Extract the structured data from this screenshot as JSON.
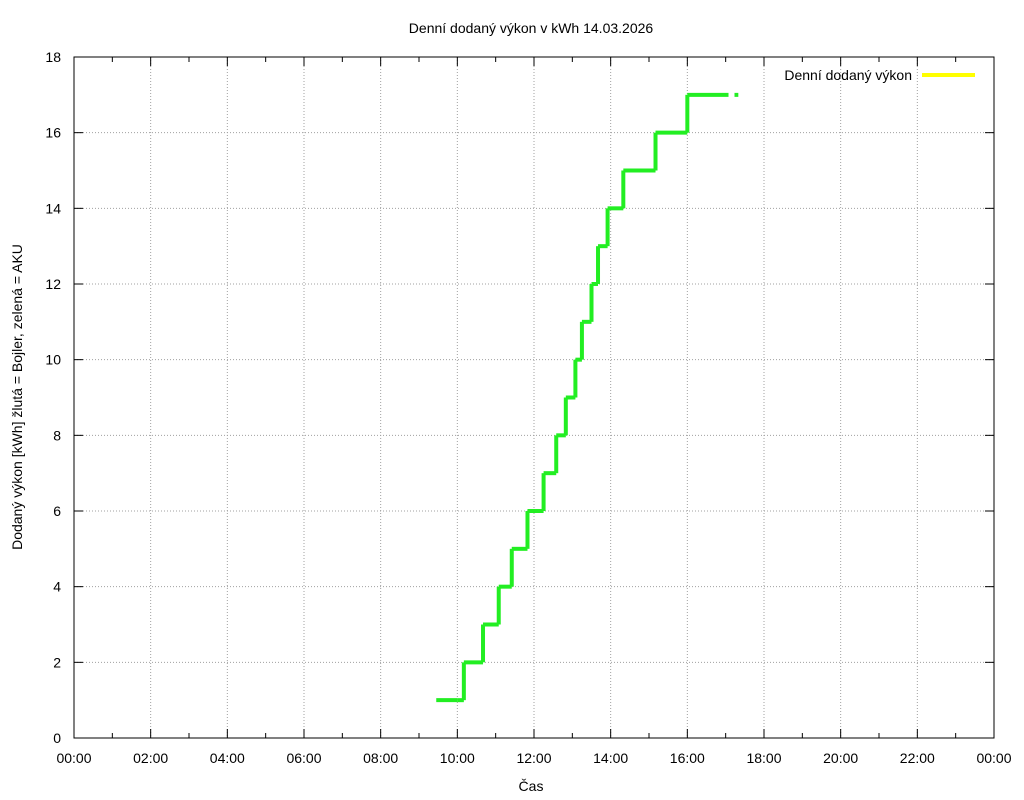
{
  "chart_data": {
    "type": "line",
    "title": "Denní dodaný výkon v kWh 14.03.2026",
    "xlabel": "Čas",
    "ylabel": "Dodaný výkon [kWh]  žlutá = Bojler, zelená = AKU",
    "xlim": [
      0,
      24
    ],
    "ylim": [
      0,
      18
    ],
    "grid": true,
    "legend_position": "top-right",
    "x_ticks": [
      {
        "value": 0,
        "label": "00:00"
      },
      {
        "value": 2,
        "label": "02:00"
      },
      {
        "value": 4,
        "label": "04:00"
      },
      {
        "value": 6,
        "label": "06:00"
      },
      {
        "value": 8,
        "label": "08:00"
      },
      {
        "value": 10,
        "label": "10:00"
      },
      {
        "value": 12,
        "label": "12:00"
      },
      {
        "value": 14,
        "label": "14:00"
      },
      {
        "value": 16,
        "label": "16:00"
      },
      {
        "value": 18,
        "label": "18:00"
      },
      {
        "value": 20,
        "label": "20:00"
      },
      {
        "value": 22,
        "label": "22:00"
      },
      {
        "value": 24,
        "label": "00:00"
      }
    ],
    "y_ticks": [
      {
        "value": 0,
        "label": "0"
      },
      {
        "value": 2,
        "label": "2"
      },
      {
        "value": 4,
        "label": "4"
      },
      {
        "value": 6,
        "label": "6"
      },
      {
        "value": 8,
        "label": "8"
      },
      {
        "value": 10,
        "label": "10"
      },
      {
        "value": 12,
        "label": "12"
      },
      {
        "value": 14,
        "label": "14"
      },
      {
        "value": 16,
        "label": "16"
      },
      {
        "value": 18,
        "label": "18"
      }
    ],
    "series": [
      {
        "name": "Denní dodaný výkon",
        "color": "#ffff00",
        "values": []
      },
      {
        "color": "#22ee22",
        "x": [
          9.45,
          10.0,
          10.17,
          10.17,
          10.67,
          10.67,
          11.08,
          11.08,
          11.42,
          11.42,
          11.83,
          11.83,
          12.25,
          12.25,
          12.58,
          12.58,
          12.83,
          12.83,
          13.08,
          13.08,
          13.25,
          13.25,
          13.5,
          13.5,
          13.67,
          13.67,
          13.92,
          13.92,
          14.33,
          14.33,
          15.17,
          15.17,
          16.0,
          16.0,
          16.5,
          17.33
        ],
        "y": [
          1,
          1,
          1,
          2,
          2,
          3,
          3,
          4,
          4,
          5,
          5,
          6,
          6,
          7,
          7,
          8,
          8,
          9,
          9,
          10,
          10,
          11,
          11,
          12,
          12,
          13,
          13,
          14,
          14,
          15,
          15,
          16,
          16,
          17,
          17,
          17
        ]
      }
    ]
  }
}
